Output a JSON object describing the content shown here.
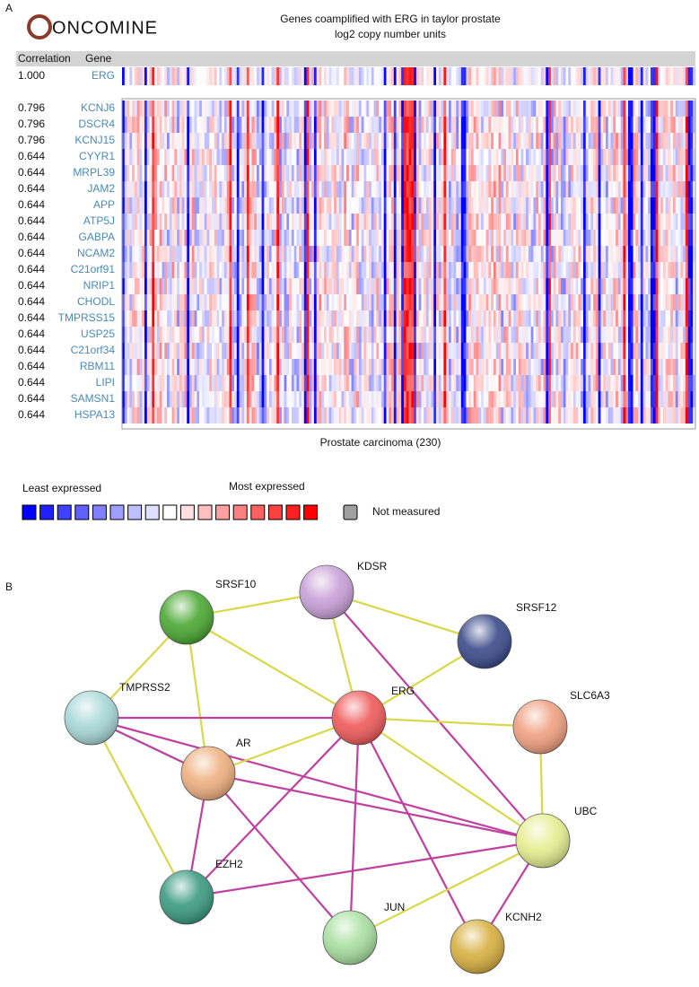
{
  "panel_a": {
    "label": "A",
    "logo": "ONCOMINE",
    "title": "Genes coamplified with ERG in taylor prostate",
    "subtitle": "log2 copy number units",
    "header": [
      "Correlation",
      "Gene"
    ],
    "rows": [
      [
        "1.000",
        "ERG"
      ],
      [
        "0.796",
        "KCNJ6"
      ],
      [
        "0.796",
        "DSCR4"
      ],
      [
        "0.796",
        "KCNJ15"
      ],
      [
        "0.644",
        "CYYR1"
      ],
      [
        "0.644",
        "MRPL39"
      ],
      [
        "0.644",
        "JAM2"
      ],
      [
        "0.644",
        "APP"
      ],
      [
        "0.644",
        "ATP5J"
      ],
      [
        "0.644",
        "GABPA"
      ],
      [
        "0.644",
        "NCAM2"
      ],
      [
        "0.644",
        "C21orf91"
      ],
      [
        "0.644",
        "NRIP1"
      ],
      [
        "0.644",
        "CHODL"
      ],
      [
        "0.644",
        "TMPRSS15"
      ],
      [
        "0.644",
        "USP25"
      ],
      [
        "0.644",
        "C21orf34"
      ],
      [
        "0.644",
        "RBM11"
      ],
      [
        "0.644",
        "LIPI"
      ],
      [
        "0.644",
        "SAMSN1"
      ],
      [
        "0.644",
        "HSPA13"
      ]
    ],
    "x_label": "Prostate carcinoma (230)",
    "legend": {
      "low": "Least expressed",
      "high": "Most expressed",
      "na": "Not measured"
    }
  },
  "panel_b": {
    "label": "B",
    "nodes": [
      {
        "label": "SRSF10"
      },
      {
        "label": "KDSR"
      },
      {
        "label": "SRSF12"
      },
      {
        "label": "TMPRSS2"
      },
      {
        "label": "ERG"
      },
      {
        "label": "SLC6A3"
      },
      {
        "label": "AR"
      },
      {
        "label": "UBC"
      },
      {
        "label": "EZH2"
      },
      {
        "label": "JUN"
      },
      {
        "label": "KCNH2"
      }
    ]
  }
}
